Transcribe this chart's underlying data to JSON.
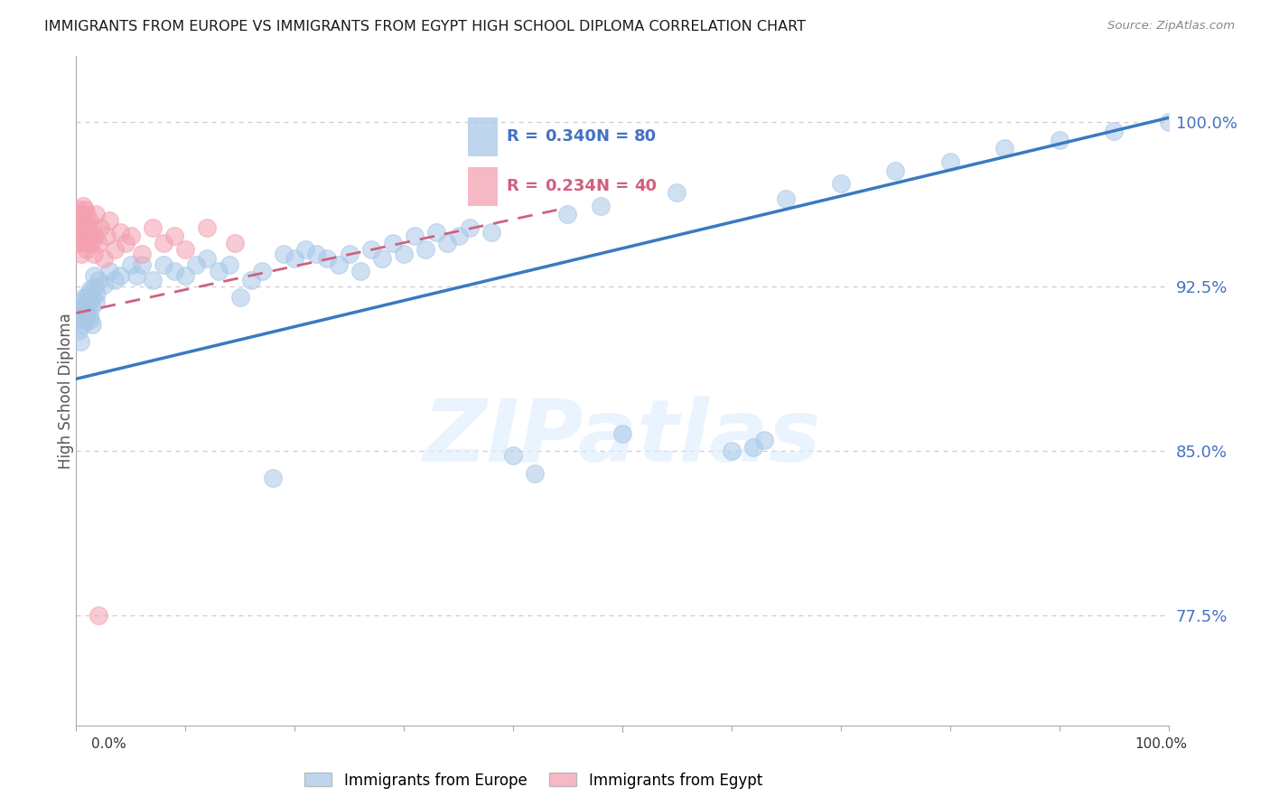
{
  "title": "IMMIGRANTS FROM EUROPE VS IMMIGRANTS FROM EGYPT HIGH SCHOOL DIPLOMA CORRELATION CHART",
  "source": "Source: ZipAtlas.com",
  "ylabel": "High School Diploma",
  "ytick_labels": [
    "77.5%",
    "85.0%",
    "92.5%",
    "100.0%"
  ],
  "ytick_values": [
    0.775,
    0.85,
    0.925,
    1.0
  ],
  "xlim": [
    0.0,
    1.0
  ],
  "ylim": [
    0.725,
    1.03
  ],
  "r_europe": 0.34,
  "n_europe": 80,
  "r_egypt": 0.234,
  "n_egypt": 40,
  "color_europe": "#a8c8e8",
  "color_egypt": "#f4a0b0",
  "trendline_europe_color": "#3a7abf",
  "trendline_egypt_color": "#d06080",
  "legend_europe": "Immigrants from Europe",
  "legend_egypt": "Immigrants from Egypt",
  "watermark": "ZIPatlas",
  "eu_x": [
    0.001,
    0.002,
    0.003,
    0.004,
    0.005,
    0.005,
    0.006,
    0.007,
    0.008,
    0.009,
    0.01,
    0.01,
    0.011,
    0.012,
    0.012,
    0.013,
    0.013,
    0.014,
    0.015,
    0.015,
    0.016,
    0.017,
    0.018,
    0.019,
    0.02,
    0.025,
    0.03,
    0.035,
    0.04,
    0.05,
    0.055,
    0.06,
    0.07,
    0.08,
    0.09,
    0.1,
    0.11,
    0.12,
    0.13,
    0.14,
    0.15,
    0.16,
    0.17,
    0.18,
    0.19,
    0.2,
    0.21,
    0.22,
    0.23,
    0.24,
    0.25,
    0.26,
    0.27,
    0.28,
    0.29,
    0.3,
    0.31,
    0.32,
    0.33,
    0.34,
    0.35,
    0.36,
    0.38,
    0.4,
    0.42,
    0.45,
    0.48,
    0.5,
    0.55,
    0.6,
    0.65,
    0.7,
    0.75,
    0.8,
    0.85,
    0.9,
    0.95,
    1.0,
    0.62,
    0.63
  ],
  "eu_y": [
    0.91,
    0.905,
    0.915,
    0.9,
    0.912,
    0.918,
    0.908,
    0.92,
    0.916,
    0.91,
    0.92,
    0.914,
    0.922,
    0.918,
    0.912,
    0.924,
    0.91,
    0.916,
    0.92,
    0.908,
    0.93,
    0.925,
    0.918,
    0.922,
    0.928,
    0.926,
    0.932,
    0.928,
    0.93,
    0.935,
    0.93,
    0.935,
    0.928,
    0.935,
    0.932,
    0.93,
    0.935,
    0.938,
    0.932,
    0.935,
    0.92,
    0.928,
    0.932,
    0.838,
    0.94,
    0.938,
    0.942,
    0.94,
    0.938,
    0.935,
    0.94,
    0.932,
    0.942,
    0.938,
    0.945,
    0.94,
    0.948,
    0.942,
    0.95,
    0.945,
    0.948,
    0.952,
    0.95,
    0.848,
    0.84,
    0.958,
    0.962,
    0.858,
    0.968,
    0.85,
    0.965,
    0.972,
    0.978,
    0.982,
    0.988,
    0.992,
    0.996,
    1.0,
    0.852,
    0.855
  ],
  "eg_x": [
    0.001,
    0.002,
    0.003,
    0.003,
    0.004,
    0.005,
    0.005,
    0.006,
    0.007,
    0.007,
    0.008,
    0.008,
    0.009,
    0.01,
    0.01,
    0.011,
    0.012,
    0.013,
    0.014,
    0.015,
    0.016,
    0.017,
    0.018,
    0.02,
    0.022,
    0.025,
    0.028,
    0.03,
    0.035,
    0.04,
    0.045,
    0.05,
    0.06,
    0.07,
    0.08,
    0.09,
    0.1,
    0.12,
    0.145,
    0.02
  ],
  "eg_y": [
    0.945,
    0.955,
    0.96,
    0.948,
    0.952,
    0.958,
    0.94,
    0.962,
    0.945,
    0.955,
    0.948,
    0.96,
    0.95,
    0.958,
    0.942,
    0.952,
    0.955,
    0.948,
    0.945,
    0.952,
    0.94,
    0.948,
    0.958,
    0.945,
    0.952,
    0.938,
    0.948,
    0.955,
    0.942,
    0.95,
    0.945,
    0.948,
    0.94,
    0.952,
    0.945,
    0.948,
    0.942,
    0.952,
    0.945,
    0.775
  ],
  "eu_trend_x": [
    0.0,
    1.0
  ],
  "eu_trend_y": [
    0.883,
    1.002
  ],
  "eg_trend_x": [
    0.0,
    0.44
  ],
  "eg_trend_y": [
    0.913,
    0.96
  ]
}
